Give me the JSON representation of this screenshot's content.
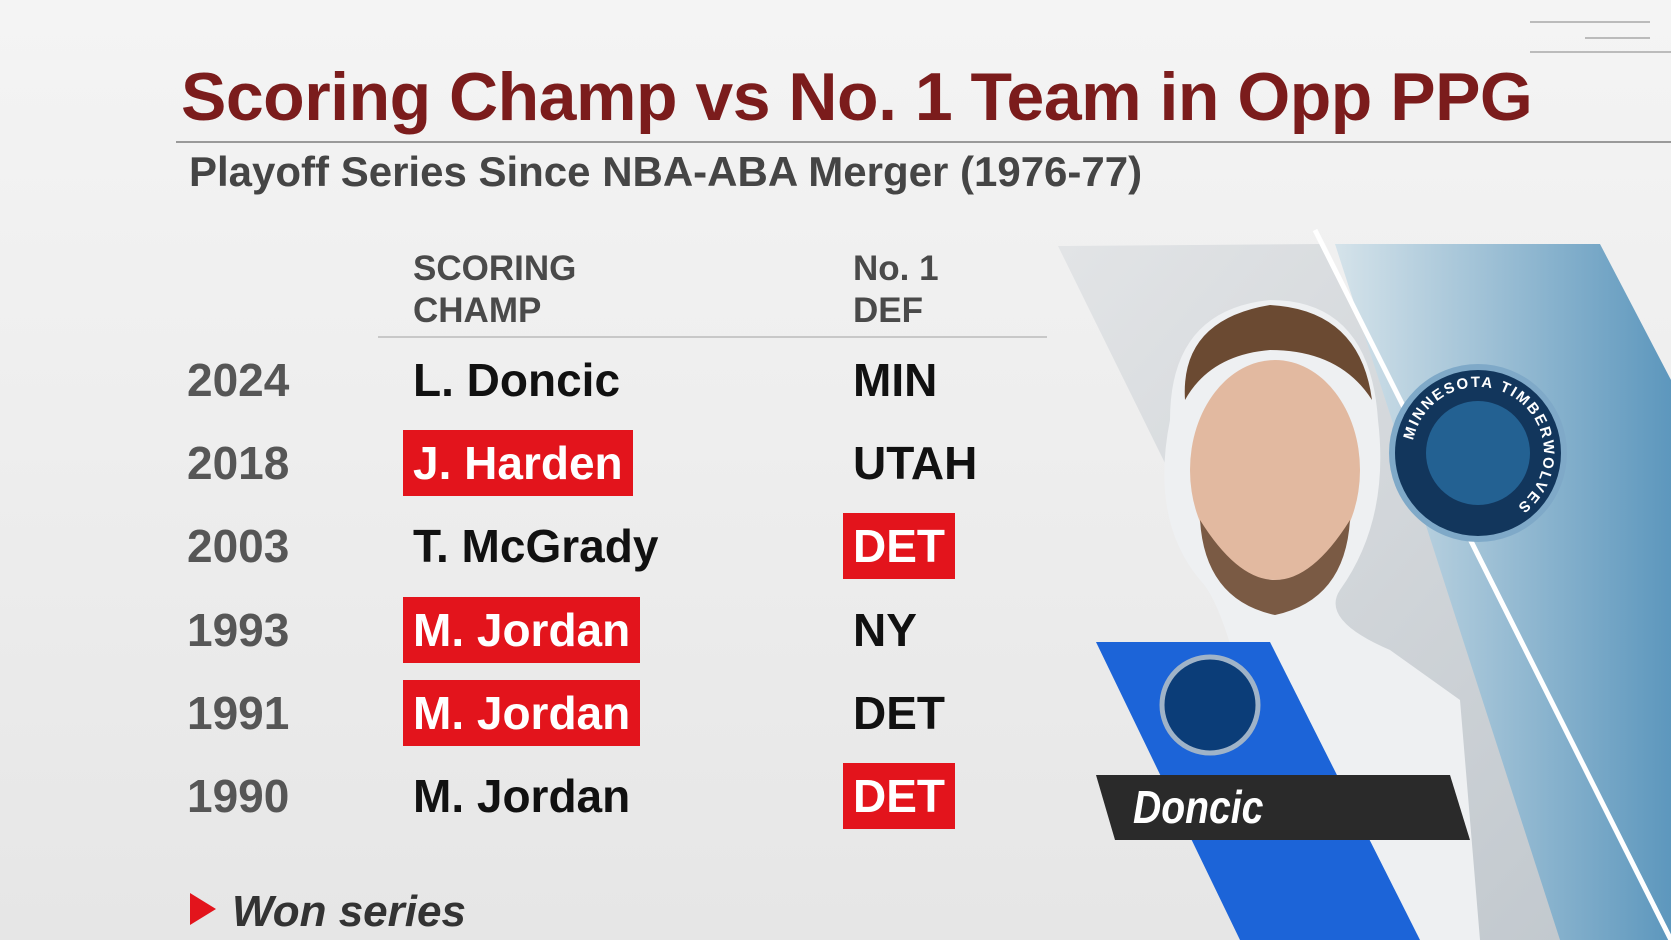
{
  "header": {
    "title": "Scoring Champ vs No. 1 Team in Opp PPG",
    "subtitle": "Playoff Series Since NBA-ABA Merger (1976-77)"
  },
  "table": {
    "columns": [
      "SCORING\nCHAMP",
      "No. 1\nDEF"
    ],
    "rows": [
      {
        "year": "2024",
        "champ": "L. Doncic",
        "def": "MIN",
        "champ_won": false,
        "def_won": false
      },
      {
        "year": "2018",
        "champ": "J. Harden",
        "def": "UTAH",
        "champ_won": true,
        "def_won": false
      },
      {
        "year": "2003",
        "champ": "T. McGrady",
        "def": "DET",
        "champ_won": false,
        "def_won": true
      },
      {
        "year": "1993",
        "champ": "M. Jordan",
        "def": "NY",
        "champ_won": true,
        "def_won": false
      },
      {
        "year": "1991",
        "champ": "M. Jordan",
        "def": "DET",
        "champ_won": true,
        "def_won": false
      },
      {
        "year": "1990",
        "champ": "M. Jordan",
        "def": "DET",
        "champ_won": false,
        "def_won": true
      }
    ]
  },
  "legend": "Won series",
  "nameplate": "Doncic",
  "logo_text": "MINNESOTA TIMBERWOLVES"
}
